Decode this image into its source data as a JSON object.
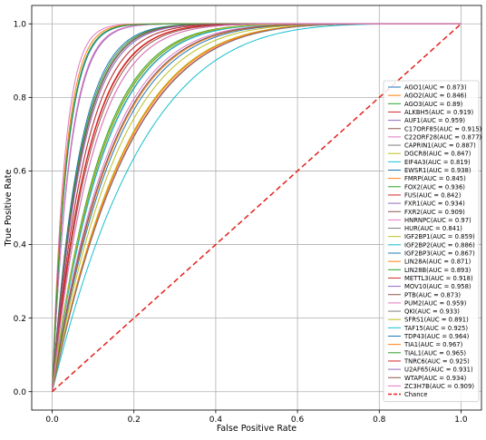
{
  "chart_data": {
    "type": "line",
    "title": "",
    "xlabel": "False Positive Rate",
    "ylabel": "True Positive Rate",
    "xlim": [
      -0.05,
      1.05
    ],
    "ylim": [
      -0.05,
      1.05
    ],
    "x_ticks": [
      "0.0",
      "0.2",
      "0.4",
      "0.6",
      "0.8",
      "1.0"
    ],
    "y_ticks": [
      "0.0",
      "0.2",
      "0.4",
      "0.6",
      "0.8",
      "1.0"
    ],
    "grid": true,
    "legend_position": "lower-right",
    "series": [
      {
        "name": "AGO1(AUC = 0.873)",
        "auc": 0.873,
        "color": "#1f77b4"
      },
      {
        "name": "AGO2(AUC = 0.846)",
        "auc": 0.846,
        "color": "#ff7f0e"
      },
      {
        "name": "AGO3(AUC = 0.89)",
        "auc": 0.89,
        "color": "#2ca02c"
      },
      {
        "name": "ALKBH5(AUC = 0.919)",
        "auc": 0.919,
        "color": "#d62728"
      },
      {
        "name": "AUF1(AUC = 0.959)",
        "auc": 0.959,
        "color": "#9467bd"
      },
      {
        "name": "C17ORF85(AUC = 0.915)",
        "auc": 0.915,
        "color": "#8c564b"
      },
      {
        "name": "C22ORF28(AUC = 0.877)",
        "auc": 0.877,
        "color": "#e377c2"
      },
      {
        "name": "CAPRIN1(AUC = 0.887)",
        "auc": 0.887,
        "color": "#7f7f7f"
      },
      {
        "name": "DGCR8(AUC = 0.847)",
        "auc": 0.847,
        "color": "#bcbd22"
      },
      {
        "name": "EIF4A3(AUC = 0.819)",
        "auc": 0.819,
        "color": "#17becf"
      },
      {
        "name": "EWSR1(AUC = 0.938)",
        "auc": 0.938,
        "color": "#1f77b4"
      },
      {
        "name": "FMRP(AUC = 0.845)",
        "auc": 0.845,
        "color": "#ff7f0e"
      },
      {
        "name": "FOX2(AUC = 0.936)",
        "auc": 0.936,
        "color": "#2ca02c"
      },
      {
        "name": "FUS(AUC = 0.842)",
        "auc": 0.842,
        "color": "#d62728"
      },
      {
        "name": "FXR1(AUC = 0.934)",
        "auc": 0.934,
        "color": "#9467bd"
      },
      {
        "name": "FXR2(AUC = 0.909)",
        "auc": 0.909,
        "color": "#8c564b"
      },
      {
        "name": "HNRNPC(AUC = 0.97)",
        "auc": 0.97,
        "color": "#e377c2"
      },
      {
        "name": "HUR(AUC = 0.841)",
        "auc": 0.841,
        "color": "#7f7f7f"
      },
      {
        "name": "IGF2BP1(AUC = 0.859)",
        "auc": 0.859,
        "color": "#bcbd22"
      },
      {
        "name": "IGF2BP2(AUC = 0.886)",
        "auc": 0.886,
        "color": "#17becf"
      },
      {
        "name": "IGF2BP3(AUC = 0.867)",
        "auc": 0.867,
        "color": "#1f77b4"
      },
      {
        "name": "LIN28A(AUC = 0.871)",
        "auc": 0.871,
        "color": "#ff7f0e"
      },
      {
        "name": "LIN28B(AUC = 0.893)",
        "auc": 0.893,
        "color": "#2ca02c"
      },
      {
        "name": "METTL3(AUC = 0.918)",
        "auc": 0.918,
        "color": "#d62728"
      },
      {
        "name": "MOV10(AUC = 0.958)",
        "auc": 0.958,
        "color": "#9467bd"
      },
      {
        "name": "PTB(AUC = 0.873)",
        "auc": 0.873,
        "color": "#8c564b"
      },
      {
        "name": "PUM2(AUC = 0.959)",
        "auc": 0.959,
        "color": "#e377c2"
      },
      {
        "name": "QKI(AUC = 0.933)",
        "auc": 0.933,
        "color": "#7f7f7f"
      },
      {
        "name": "SFRS1(AUC = 0.891)",
        "auc": 0.891,
        "color": "#bcbd22"
      },
      {
        "name": "TAF15(AUC = 0.925)",
        "auc": 0.925,
        "color": "#17becf"
      },
      {
        "name": "TDP43(AUC = 0.964)",
        "auc": 0.964,
        "color": "#1f77b4"
      },
      {
        "name": "TIA1(AUC = 0.967)",
        "auc": 0.967,
        "color": "#ff7f0e"
      },
      {
        "name": "TIAL1(AUC = 0.965)",
        "auc": 0.965,
        "color": "#2ca02c"
      },
      {
        "name": "TNRC6(AUC = 0.925)",
        "auc": 0.925,
        "color": "#d62728"
      },
      {
        "name": "U2AF65(AUC = 0.931)",
        "auc": 0.931,
        "color": "#9467bd"
      },
      {
        "name": "WTAP(AUC = 0.934)",
        "auc": 0.934,
        "color": "#8c564b"
      },
      {
        "name": "ZC3H7B(AUC = 0.909)",
        "auc": 0.909,
        "color": "#e377c2"
      }
    ],
    "chance": {
      "name": "Chance",
      "x": [
        0,
        1
      ],
      "y": [
        0,
        1
      ],
      "color": "#e3201b"
    }
  }
}
